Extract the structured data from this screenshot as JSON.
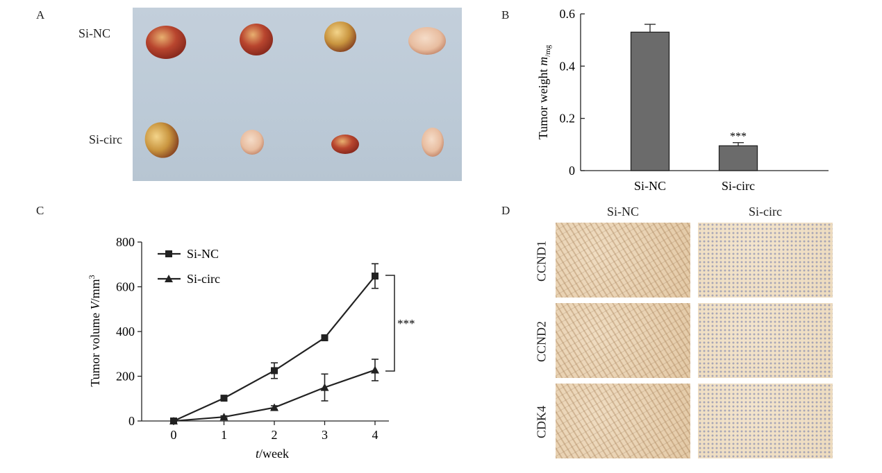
{
  "panels": {
    "a": {
      "letter": "A",
      "row_labels": [
        "Si-NC",
        "Si-circ"
      ]
    },
    "d": {
      "letter": "D",
      "columns": [
        "Si-NC",
        "Si-circ"
      ],
      "rows": [
        "CCND1",
        "CCND2",
        "CDK4"
      ]
    }
  },
  "chart_data": [
    {
      "panel": "B",
      "type": "bar",
      "categories": [
        "Si-NC",
        "Si-circ"
      ],
      "values": [
        0.53,
        0.095
      ],
      "errors": [
        0.03,
        0.012
      ],
      "annotations": [
        "",
        "***"
      ],
      "ylabel_main": "Tumor weight ",
      "ylabel_var": "m",
      "ylabel_sub": "/mg",
      "ylim": [
        0,
        0.6
      ],
      "yticks": [
        "0",
        "0.2",
        "0.4",
        "0.6"
      ],
      "bar_color": "#6b6b6b"
    },
    {
      "panel": "C",
      "type": "line",
      "x": [
        0,
        1,
        2,
        3,
        4
      ],
      "xticks": [
        "0",
        "1",
        "2",
        "3",
        "4"
      ],
      "series": [
        {
          "name": "Si-NC",
          "marker": "square",
          "values": [
            0,
            102,
            225,
            372,
            648
          ],
          "errors": [
            0,
            5,
            35,
            8,
            55
          ]
        },
        {
          "name": "Si-circ",
          "marker": "triangle",
          "values": [
            0,
            18,
            60,
            150,
            228
          ],
          "errors": [
            0,
            5,
            8,
            60,
            48
          ]
        }
      ],
      "ylabel_main": "Tumor volume ",
      "ylabel_var": "V",
      "ylabel_unit": "/mm",
      "ylabel_sup": "3",
      "xlabel_var": "t",
      "xlabel_unit": "/week",
      "ylim": [
        0,
        800
      ],
      "yticks": [
        "0",
        "200",
        "400",
        "600",
        "800"
      ],
      "significance": "***",
      "legend_placement": "top-left"
    }
  ]
}
